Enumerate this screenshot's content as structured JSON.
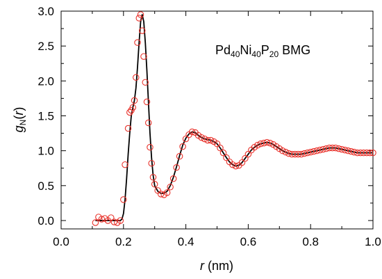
{
  "chart_data": {
    "type": "scatter",
    "title": "",
    "annotation": {
      "parts": [
        {
          "text": "Pd",
          "sub": false
        },
        {
          "text": "40",
          "sub": true
        },
        {
          "text": "Ni",
          "sub": false
        },
        {
          "text": "40",
          "sub": true
        },
        {
          "text": "P",
          "sub": false
        },
        {
          "text": "20",
          "sub": true
        },
        {
          "text": " BMG",
          "sub": false
        }
      ],
      "position": "top-right"
    },
    "xlabel": {
      "italic": "r",
      "rest": " (nm)"
    },
    "ylabel": {
      "italic": "g",
      "subscript": "N",
      "rest": "(",
      "italic2": "r",
      "close": ")"
    },
    "xlim": [
      0.0,
      1.0
    ],
    "ylim": [
      -0.12,
      3.0
    ],
    "xticks": [
      "0.0",
      "0.2",
      "0.4",
      "0.6",
      "0.8",
      "1.0"
    ],
    "yticks": [
      "0.0",
      "0.5",
      "1.0",
      "1.5",
      "2.0",
      "2.5",
      "3.0"
    ],
    "grid": false,
    "colors": {
      "line": "#000000",
      "markers": "#e8322b"
    },
    "series": [
      {
        "kind": "line",
        "x": [
          0.11,
          0.13,
          0.15,
          0.17,
          0.18,
          0.19,
          0.195,
          0.2,
          0.205,
          0.21,
          0.215,
          0.22,
          0.225,
          0.23,
          0.235,
          0.24,
          0.245,
          0.25,
          0.255,
          0.26,
          0.265,
          0.27,
          0.275,
          0.28,
          0.285,
          0.29,
          0.295,
          0.3,
          0.31,
          0.32,
          0.33,
          0.34,
          0.35,
          0.36,
          0.37,
          0.38,
          0.39,
          0.4,
          0.41,
          0.42,
          0.43,
          0.44,
          0.45,
          0.46,
          0.47,
          0.48,
          0.49,
          0.5,
          0.51,
          0.52,
          0.53,
          0.54,
          0.55,
          0.56,
          0.57,
          0.58,
          0.59,
          0.6,
          0.61,
          0.62,
          0.63,
          0.64,
          0.65,
          0.66,
          0.67,
          0.68,
          0.69,
          0.7,
          0.71,
          0.72,
          0.73,
          0.74,
          0.75,
          0.76,
          0.77,
          0.78,
          0.79,
          0.8,
          0.81,
          0.82,
          0.83,
          0.84,
          0.85,
          0.86,
          0.87,
          0.88,
          0.89,
          0.9,
          0.91,
          0.92,
          0.93,
          0.94,
          0.95,
          0.96,
          0.97,
          0.98,
          0.99,
          1.0
        ],
        "y": [
          0.0,
          0.0,
          0.0,
          0.0,
          0.0,
          0.0,
          0.02,
          0.1,
          0.3,
          0.6,
          0.95,
          1.25,
          1.5,
          1.62,
          1.72,
          1.9,
          2.2,
          2.55,
          2.85,
          2.95,
          2.85,
          2.55,
          2.15,
          1.7,
          1.25,
          0.9,
          0.65,
          0.5,
          0.42,
          0.39,
          0.39,
          0.42,
          0.5,
          0.62,
          0.77,
          0.93,
          1.08,
          1.18,
          1.24,
          1.27,
          1.26,
          1.22,
          1.19,
          1.17,
          1.16,
          1.15,
          1.13,
          1.1,
          1.04,
          0.97,
          0.9,
          0.84,
          0.8,
          0.78,
          0.79,
          0.83,
          0.89,
          0.95,
          1.01,
          1.05,
          1.08,
          1.1,
          1.11,
          1.12,
          1.11,
          1.09,
          1.06,
          1.03,
          1.0,
          0.98,
          0.96,
          0.95,
          0.95,
          0.95,
          0.95,
          0.96,
          0.97,
          0.98,
          0.99,
          1.0,
          1.01,
          1.02,
          1.03,
          1.04,
          1.04,
          1.04,
          1.03,
          1.02,
          1.01,
          1.0,
          0.99,
          0.98,
          0.97,
          0.97,
          0.97,
          0.97,
          0.97,
          0.97
        ]
      },
      {
        "kind": "markers",
        "x": [
          0.11,
          0.12,
          0.13,
          0.14,
          0.15,
          0.16,
          0.17,
          0.18,
          0.19,
          0.2,
          0.205,
          0.215,
          0.22,
          0.225,
          0.23,
          0.235,
          0.24,
          0.245,
          0.25,
          0.255,
          0.26,
          0.265,
          0.27,
          0.275,
          0.28,
          0.285,
          0.29,
          0.295,
          0.3,
          0.31,
          0.32,
          0.33,
          0.34,
          0.35,
          0.36,
          0.37,
          0.38,
          0.39,
          0.4,
          0.41,
          0.42,
          0.43,
          0.44,
          0.45,
          0.46,
          0.47,
          0.48,
          0.49,
          0.5,
          0.51,
          0.52,
          0.53,
          0.54,
          0.55,
          0.56,
          0.57,
          0.58,
          0.59,
          0.6,
          0.61,
          0.62,
          0.63,
          0.64,
          0.65,
          0.66,
          0.67,
          0.68,
          0.69,
          0.7,
          0.71,
          0.72,
          0.73,
          0.74,
          0.75,
          0.76,
          0.77,
          0.78,
          0.79,
          0.8,
          0.81,
          0.82,
          0.83,
          0.84,
          0.85,
          0.86,
          0.87,
          0.88,
          0.89,
          0.9,
          0.91,
          0.92,
          0.93,
          0.94,
          0.95,
          0.96,
          0.97,
          0.98,
          0.99,
          1.0
        ],
        "y": [
          -0.03,
          0.05,
          0.02,
          0.03,
          0.0,
          0.04,
          -0.02,
          -0.03,
          0.0,
          0.3,
          0.8,
          1.32,
          1.55,
          1.58,
          1.62,
          1.72,
          2.05,
          2.55,
          2.9,
          2.95,
          2.72,
          2.35,
          1.98,
          1.7,
          1.4,
          1.05,
          0.82,
          0.62,
          0.52,
          0.43,
          0.38,
          0.37,
          0.4,
          0.48,
          0.6,
          0.76,
          0.92,
          1.06,
          1.17,
          1.23,
          1.27,
          1.26,
          1.22,
          1.19,
          1.17,
          1.15,
          1.15,
          1.13,
          1.1,
          1.04,
          0.97,
          0.9,
          0.84,
          0.8,
          0.78,
          0.79,
          0.83,
          0.89,
          0.95,
          1.01,
          1.05,
          1.08,
          1.1,
          1.11,
          1.12,
          1.11,
          1.09,
          1.06,
          1.03,
          1.0,
          0.98,
          0.96,
          0.95,
          0.95,
          0.95,
          0.95,
          0.96,
          0.97,
          0.98,
          0.99,
          1.0,
          1.01,
          1.02,
          1.03,
          1.04,
          1.04,
          1.04,
          1.03,
          1.02,
          1.01,
          1.0,
          0.99,
          0.98,
          0.97,
          0.97,
          0.97,
          0.97,
          0.97,
          0.97
        ]
      }
    ]
  }
}
